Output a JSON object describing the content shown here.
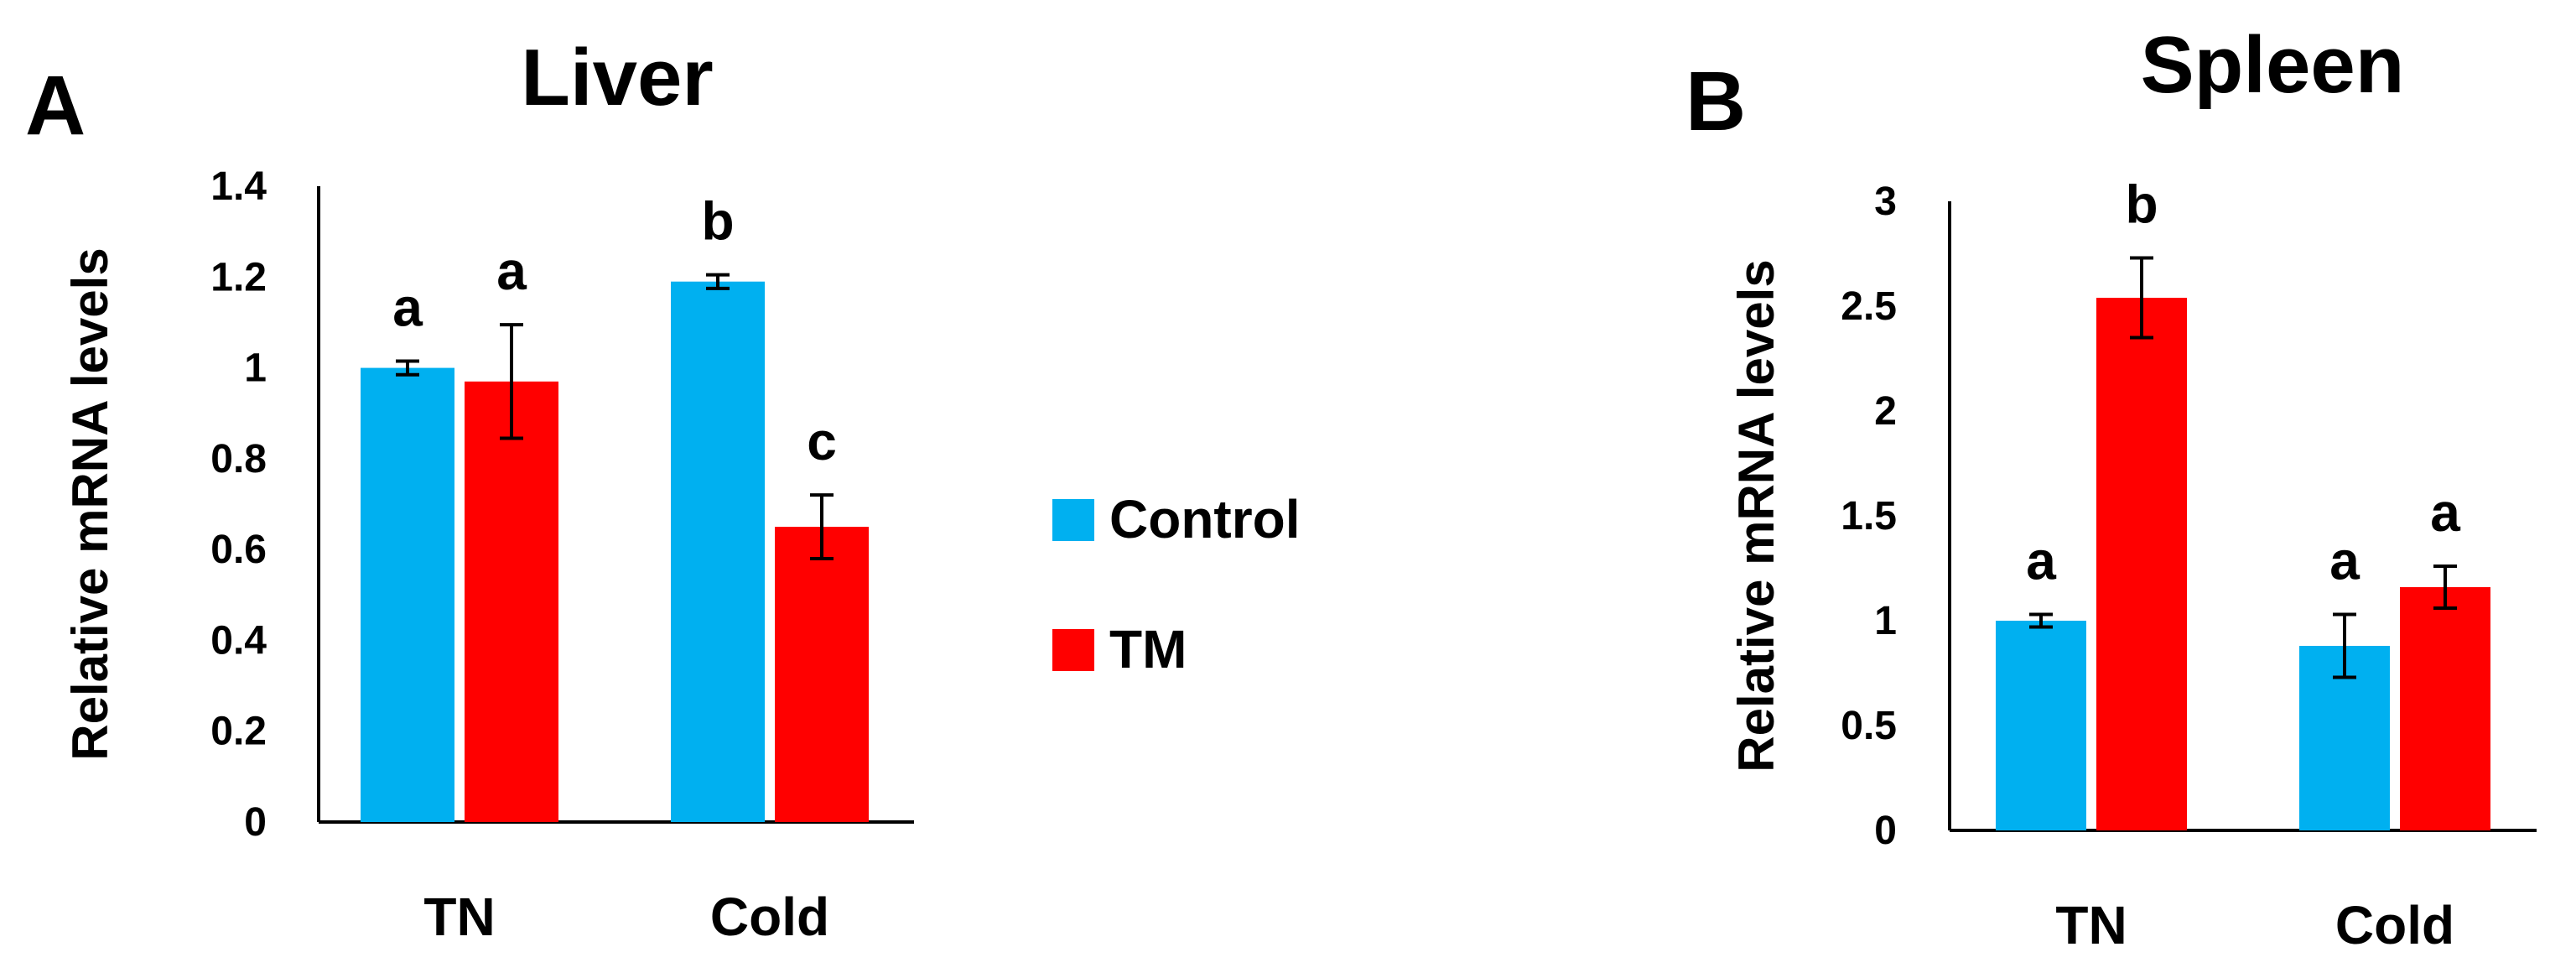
{
  "colors": {
    "control": "#00B0F0",
    "tm": "#FF0000"
  },
  "legend": [
    {
      "name": "Control",
      "color": "#00B0F0"
    },
    {
      "name": "TM",
      "color": "#FF0000"
    }
  ],
  "chart_data": [
    {
      "type": "bar",
      "panel": "A",
      "title": "Liver",
      "ylabel": "Relative mRNA levels",
      "xlabel": "",
      "categories": [
        "TN",
        "Cold"
      ],
      "ylim": [
        0,
        1.4
      ],
      "yticks": [
        0,
        0.2,
        0.4,
        0.6,
        0.8,
        1,
        1.2,
        1.4
      ],
      "yticklabels": [
        "0",
        "0.2",
        "0.4",
        "0.6",
        "0.8",
        "1",
        "1.2",
        "1.4"
      ],
      "series": [
        {
          "name": "Control",
          "values": [
            1.0,
            1.19
          ],
          "errors": [
            0.015,
            0.015
          ],
          "labels": [
            "a",
            "b"
          ]
        },
        {
          "name": "TM",
          "values": [
            0.97,
            0.65
          ],
          "errors": [
            0.125,
            0.07
          ],
          "labels": [
            "a",
            "c"
          ]
        }
      ]
    },
    {
      "type": "bar",
      "panel": "B",
      "title": "Spleen",
      "ylabel": "Relative mRNA levels",
      "xlabel": "",
      "categories": [
        "TN",
        "Cold"
      ],
      "ylim": [
        0,
        3
      ],
      "yticks": [
        0,
        0.5,
        1,
        1.5,
        2,
        2.5,
        3
      ],
      "yticklabels": [
        "0",
        "0.5",
        "1",
        "1.5",
        "2",
        "2.5",
        "3"
      ],
      "series": [
        {
          "name": "Control",
          "values": [
            1.0,
            0.88
          ],
          "errors": [
            0.03,
            0.15
          ],
          "labels": [
            "a",
            "a"
          ]
        },
        {
          "name": "TM",
          "values": [
            2.54,
            1.16
          ],
          "errors": [
            0.19,
            0.1
          ],
          "labels": [
            "b",
            "a"
          ]
        }
      ]
    }
  ]
}
